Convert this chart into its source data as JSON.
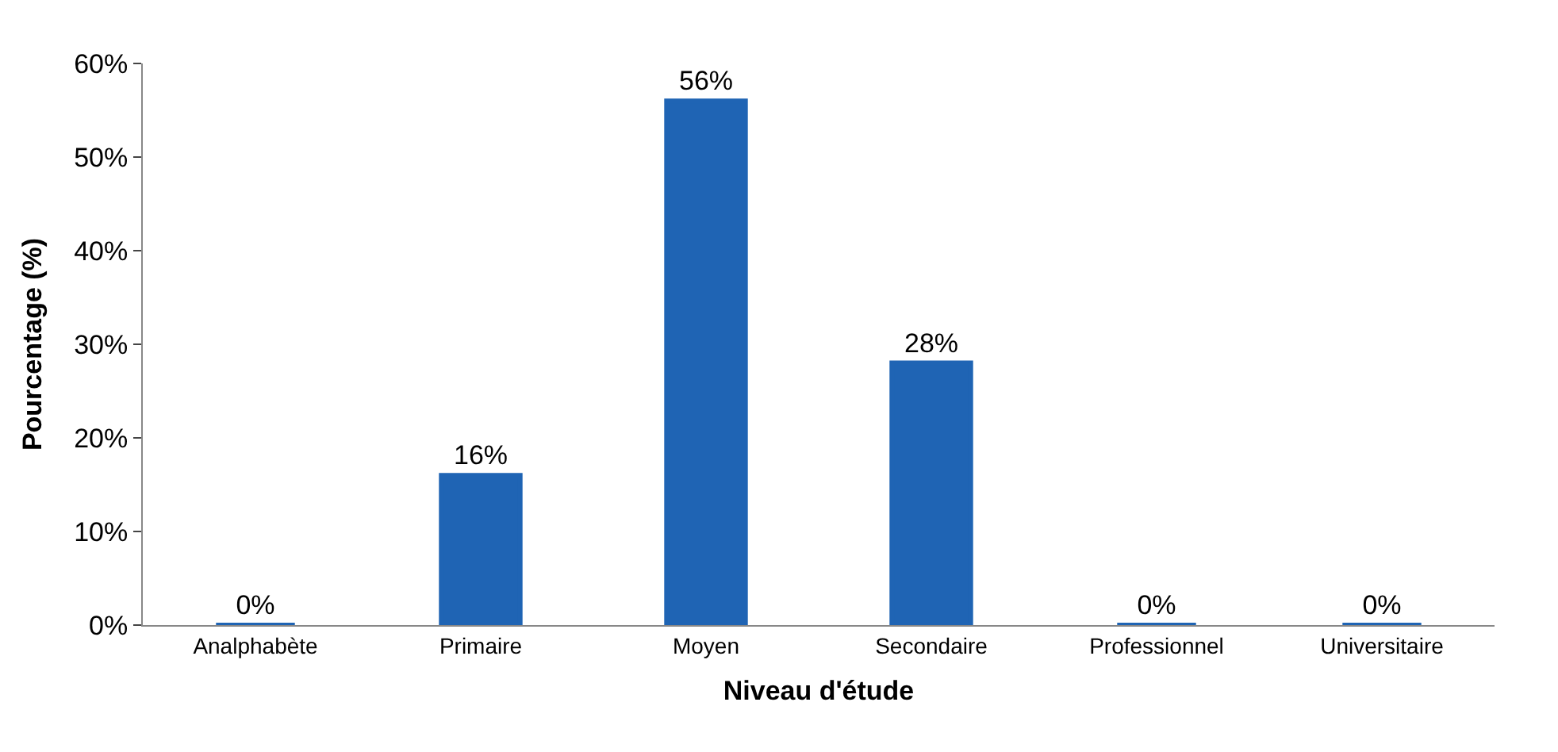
{
  "chart_data": {
    "type": "bar",
    "xlabel": "Niveau d'étude",
    "ylabel": "Pourcentage (%)",
    "categories": [
      "Analphabète",
      "Primaire",
      "Moyen",
      "Secondaire",
      "Professionnel",
      "Universitaire"
    ],
    "values": [
      0,
      16,
      56,
      28,
      0,
      0
    ],
    "value_labels": [
      "0%",
      "16%",
      "56%",
      "28%",
      "0%",
      "0%"
    ],
    "color": "#1f64b4",
    "ylim": [
      0,
      60
    ],
    "yticks": [
      {
        "value": 0,
        "label": "0%"
      },
      {
        "value": 10,
        "label": "10%"
      },
      {
        "value": 20,
        "label": "20%"
      },
      {
        "value": 30,
        "label": "30%"
      },
      {
        "value": 40,
        "label": "40%"
      },
      {
        "value": 50,
        "label": "50%"
      },
      {
        "value": 60,
        "label": "60%"
      }
    ],
    "grid": false,
    "legend": false
  }
}
